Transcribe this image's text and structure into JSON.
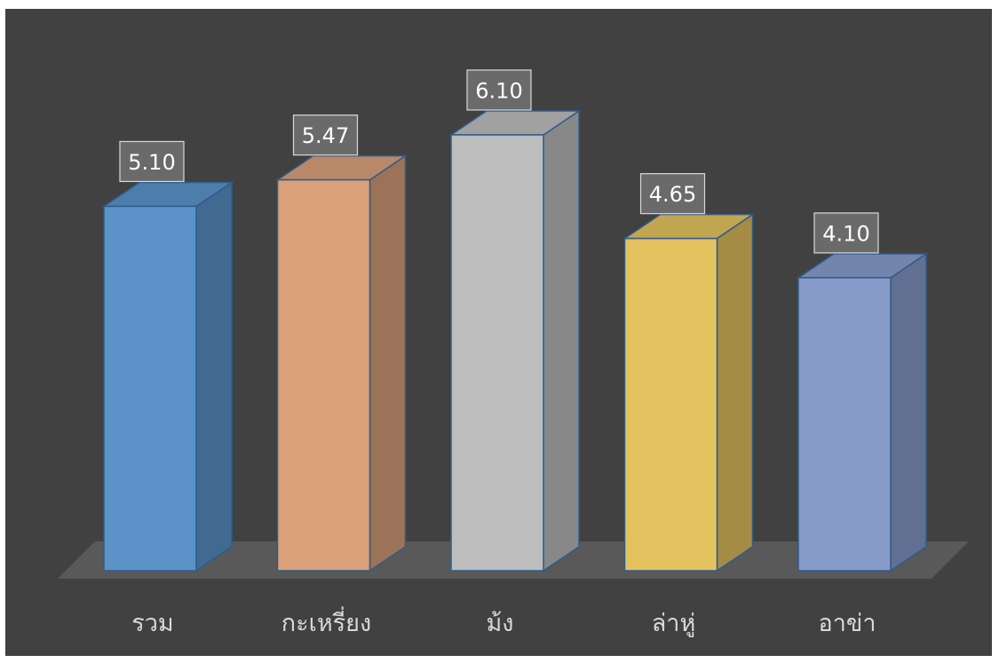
{
  "chart_data": {
    "type": "bar",
    "style": "3d-column",
    "title": "",
    "xlabel": "",
    "ylabel": "",
    "ylim": [
      0,
      7.5
    ],
    "grid": false,
    "legend": "none",
    "background_color": "#414141",
    "categories": [
      "รวม",
      "กะเหรี่ยง",
      "ม้ง",
      "ล่าหู่",
      "อาข่า"
    ],
    "values": [
      5.1,
      5.47,
      6.1,
      4.65,
      4.1
    ],
    "value_labels": [
      "5.10",
      "5.47",
      "6.10",
      "4.65",
      "4.10"
    ],
    "colors": [
      "#5b93c9",
      "#d9a07a",
      "#bdbdbd",
      "#e4c25f",
      "#879bcb"
    ]
  }
}
